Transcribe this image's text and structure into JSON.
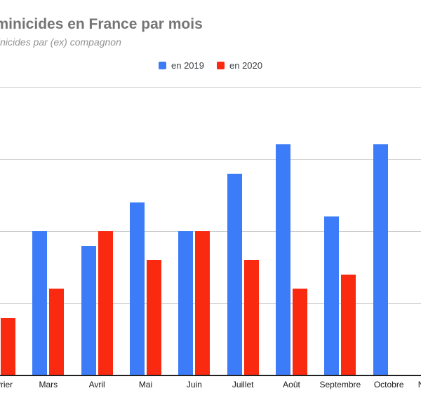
{
  "chart": {
    "title": "Féminicides en France par mois",
    "subtitle": "Féminicides par (ex) compagnon"
  },
  "legend": {
    "items": [
      {
        "label": "en 2019",
        "color": "#3C7CF8"
      },
      {
        "label": "en 2020",
        "color": "#FA2A11"
      }
    ]
  },
  "chart_data": {
    "type": "bar",
    "title": "Féminicides en France par mois",
    "subtitle": "Féminicides par (ex) compagnon",
    "categories": [
      "Février",
      "Mars",
      "Avril",
      "Mai",
      "Juin",
      "Juillet",
      "Août",
      "Septembre",
      "Octobre",
      "Novembre"
    ],
    "series": [
      {
        "name": "en 2019",
        "color": "#3C7CF8",
        "values": [
          null,
          10,
          9,
          12,
          10,
          14,
          16,
          11,
          16,
          null
        ]
      },
      {
        "name": "en 2020",
        "color": "#FA2A11",
        "values": [
          4,
          6,
          10,
          8,
          10,
          8,
          6,
          7,
          null,
          null
        ]
      }
    ],
    "xlabel": "",
    "ylabel": "",
    "ylim": [
      0,
      20
    ],
    "grid": true,
    "grid_interval": 5,
    "gridline_values": [
      5,
      10,
      15,
      20
    ],
    "legend_position": "top-center"
  },
  "colors": {
    "background": "#FFFFFF",
    "gridline": "#CCCCCC",
    "axis_line": "#212121",
    "title": "#757575",
    "subtitle": "#929292",
    "axis_label": "#1A1A1A",
    "legend_text": "#3C4043"
  }
}
